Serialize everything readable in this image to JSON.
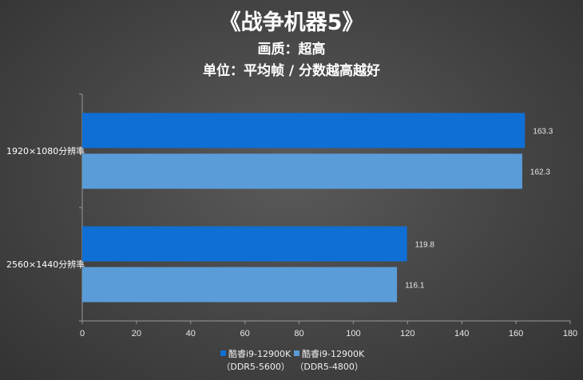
{
  "header": {
    "title": "《战争机器5》",
    "subtitle": "画质：超高",
    "unit_note": "单位：平均帧 / 分数越高越好"
  },
  "colors": {
    "series1": "#0f6fd4",
    "series2": "#5a9cd8",
    "axis": "#999999"
  },
  "legend": [
    {
      "label": "酷睿i9-12900K",
      "sub": "（DDR5-5600）"
    },
    {
      "label": "酷睿i9-12900K",
      "sub": "（DDR5-4800）"
    }
  ],
  "chart_data": {
    "type": "bar",
    "orientation": "horizontal",
    "categories": [
      "1920×1080分辨率",
      "2560×1440分辨率"
    ],
    "series": [
      {
        "name": "酷睿i9-12900K（DDR5-5600）",
        "values": [
          163.3,
          119.8
        ]
      },
      {
        "name": "酷睿i9-12900K（DDR5-4800）",
        "values": [
          162.3,
          116.1
        ]
      }
    ],
    "value_labels": [
      [
        "163.3",
        "119.8"
      ],
      [
        "162.3",
        "116.1"
      ]
    ],
    "xlim": [
      0,
      180
    ],
    "xticks": [
      0,
      20,
      40,
      60,
      80,
      100,
      120,
      140,
      160,
      180
    ],
    "legend_position": "bottom",
    "grid": false
  }
}
